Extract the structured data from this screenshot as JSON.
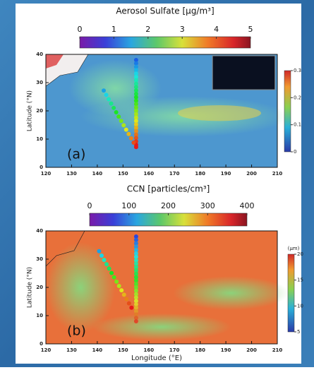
{
  "panels": [
    {
      "colorbar_title": "Aerosol Sulfate [μg/m³]",
      "colorbar_lim": [
        0,
        5
      ],
      "colorbar_ticks": [
        0,
        1,
        2,
        3,
        4,
        5
      ],
      "label": "(a)",
      "ylabel": "Latitude (°N)",
      "xlim": [
        120,
        210
      ],
      "xticks": [
        120,
        130,
        140,
        150,
        160,
        170,
        180,
        190,
        200,
        210
      ],
      "ylim": [
        0,
        40
      ],
      "yticks": [
        0,
        10,
        20,
        30,
        40
      ],
      "side_colorbar_lim": [
        0,
        0.3
      ],
      "side_colorbar_ticks": [
        0,
        0.1,
        0.2,
        0.3
      ]
    },
    {
      "colorbar_title": "CCN [particles/cm³]",
      "colorbar_lim": [
        0,
        400
      ],
      "colorbar_ticks": [
        0,
        100,
        200,
        300,
        400
      ],
      "label": "(b)",
      "ylabel": "Latitude (°N)",
      "xlim": [
        120,
        210
      ],
      "xticks": [
        120,
        130,
        140,
        150,
        160,
        170,
        180,
        190,
        200,
        210
      ],
      "ylim": [
        0,
        40
      ],
      "yticks": [
        0,
        10,
        20,
        30,
        40
      ],
      "side_colorbar_title": "(μm)",
      "side_colorbar_lim": [
        5,
        20
      ],
      "side_colorbar_ticks": [
        5,
        10,
        15,
        20
      ]
    }
  ],
  "xlabel": "Longitude (°E)"
}
